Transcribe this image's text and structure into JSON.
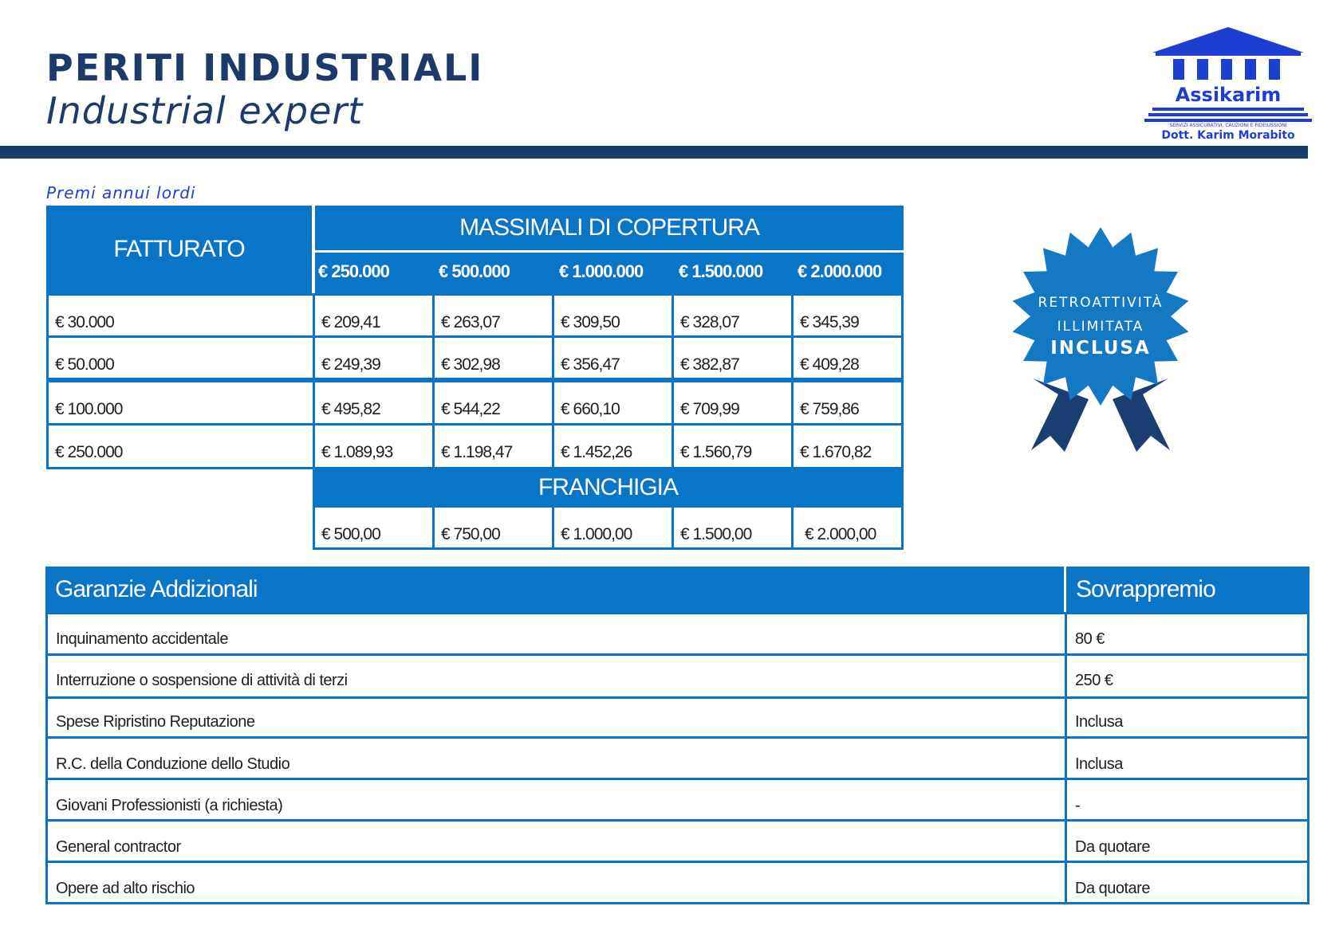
{
  "header": {
    "title": "PERITI INDUSTRIALI",
    "subtitle": "Industrial expert"
  },
  "logo": {
    "name": "Assikarim",
    "tagline": "SERVIZI ASSICURATIVI, CAUZIONI E FIDEIUSSIONI",
    "owner": "Dott. Karim Morabito",
    "color": "#1d3fd1"
  },
  "section_label": "Premi annui lordi",
  "premium_table": {
    "fatturato_header": "FATTURATO",
    "massimali_header": "MASSIMALI DI COPERTURA",
    "columns": [
      "€ 250.000",
      "€ 500.000",
      "€ 1.000.000",
      "€ 1.500.000",
      "€ 2.000.000"
    ],
    "rows": [
      {
        "fatturato": "€ 30.000",
        "values": [
          "€ 209,41",
          "€ 263,07",
          "€ 309,50",
          "€ 328,07",
          "€ 345,39"
        ]
      },
      {
        "fatturato": "€ 50.000",
        "values": [
          "€ 249,39",
          "€ 302,98",
          "€ 356,47",
          "€ 382,87",
          "€ 409,28"
        ]
      },
      {
        "fatturato": "€ 100.000",
        "values": [
          "€ 495,82",
          "€ 544,22",
          "€ 660,10",
          "€ 709,99",
          "€ 759,86"
        ]
      },
      {
        "fatturato": "€ 250.000",
        "values": [
          "€ 1.089,93",
          "€ 1.198,47",
          "€ 1.452,26",
          "€ 1.560,79",
          "€ 1.670,82"
        ]
      }
    ],
    "franchigia_header": "FRANCHIGIA",
    "franchigia_values": [
      "€ 500,00",
      "€ 750,00",
      "€ 1.000,00",
      "€ 1.500,00",
      "€ 2.000,00"
    ]
  },
  "badge": {
    "line1": "RETROATTIVITÀ",
    "line2": "ILLIMITATA",
    "line3": "INCLUSA"
  },
  "guarantees": {
    "header_left": "Garanzie Addizionali",
    "header_right": "Sovrappremio",
    "rows": [
      {
        "name": "Inquinamento accidentale",
        "value": "80 €"
      },
      {
        "name": "Interruzione o sospensione di attività di terzi",
        "value": "250 €"
      },
      {
        "name": "Spese Ripristino Reputazione",
        "value": "Inclusa"
      },
      {
        "name": "R.C. della Conduzione dello Studio",
        "value": "Inclusa"
      },
      {
        "name": "Giovani Professionisti (a richiesta)",
        "value": "-"
      },
      {
        "name": "General contractor",
        "value": "Da quotare"
      },
      {
        "name": "Opere ad alto rischio",
        "value": "Da quotare"
      }
    ]
  },
  "colors": {
    "table_blue": "#0a74c7",
    "navy": "#1e3a6b",
    "badge_blue": "#1578c2",
    "ribbon_navy": "#1b3f73"
  }
}
